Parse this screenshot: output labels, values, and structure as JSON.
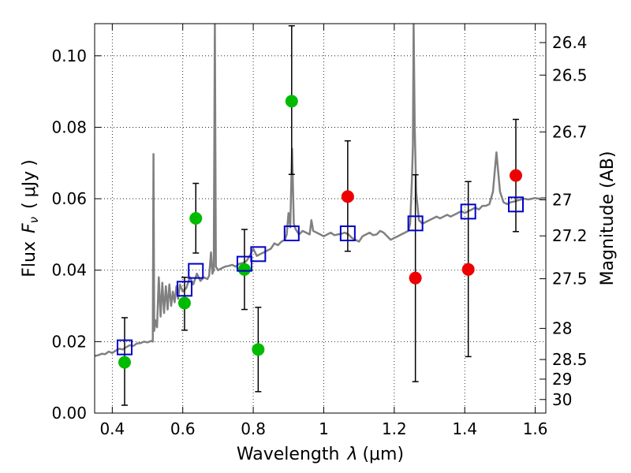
{
  "chart_data": {
    "type": "scatter",
    "xlabel_text": "Wavelength",
    "xlabel_symbol": "λ",
    "xlabel_unit": "(μm)",
    "ylabel_text": "Flux",
    "ylabel_symbol": "F",
    "ylabel_subscript": "ν",
    "ylabel_unit": "μJy",
    "y2label": "Magnitude (AB)",
    "xlim": [
      0.35,
      1.63
    ],
    "ylim": [
      0.0,
      0.109
    ],
    "grid": true,
    "xticks": [
      0.4,
      0.6,
      0.8,
      1.0,
      1.2,
      1.4,
      1.6
    ],
    "xtick_labels": [
      "0.4",
      "0.6",
      "0.8",
      "1",
      "1.2",
      "1.4",
      "1.6"
    ],
    "yticks": [
      0.0,
      0.02,
      0.04,
      0.06,
      0.08,
      0.1
    ],
    "ytick_labels": [
      "0.00",
      "0.02",
      "0.04",
      "0.06",
      "0.08",
      "0.10"
    ],
    "right_ticks": [
      {
        "label": "26.4",
        "flux": 0.1037
      },
      {
        "label": "26.5",
        "flux": 0.0946
      },
      {
        "label": "26.7",
        "flux": 0.0787
      },
      {
        "label": "27",
        "flux": 0.0597
      },
      {
        "label": "27.2",
        "flux": 0.0496
      },
      {
        "label": "27.5",
        "flux": 0.0376
      },
      {
        "label": "28",
        "flux": 0.0237
      },
      {
        "label": "28.5",
        "flux": 0.015
      },
      {
        "label": "29",
        "flux": 0.0095
      },
      {
        "label": "30",
        "flux": 0.0038
      }
    ],
    "colors": {
      "model": "#808080",
      "model_photometry": "#0000cc",
      "detections": "#00bb00",
      "upper_points": "#ee0000",
      "errorbar": "#000000"
    },
    "series": [
      {
        "kind": "green-points",
        "points": [
          {
            "x": 0.435,
            "y": 0.0142,
            "yerr_low": 0.0022,
            "yerr_high": 0.0267
          },
          {
            "x": 0.605,
            "y": 0.0308,
            "yerr_low": 0.0232,
            "yerr_high": 0.038
          },
          {
            "x": 0.637,
            "y": 0.0545,
            "yerr_low": 0.0448,
            "yerr_high": 0.0643
          },
          {
            "x": 0.775,
            "y": 0.0402,
            "yerr_low": 0.029,
            "yerr_high": 0.0514
          },
          {
            "x": 0.814,
            "y": 0.0178,
            "yerr_low": 0.006,
            "yerr_high": 0.0296
          },
          {
            "x": 0.909,
            "y": 0.0873,
            "yerr_low": 0.0668,
            "yerr_high": 0.1084
          }
        ]
      },
      {
        "kind": "red-points",
        "points": [
          {
            "x": 1.068,
            "y": 0.0606,
            "yerr_low": 0.0453,
            "yerr_high": 0.0762
          },
          {
            "x": 1.26,
            "y": 0.0378,
            "yerr_low": 0.0088,
            "yerr_high": 0.0667
          },
          {
            "x": 1.41,
            "y": 0.0402,
            "yerr_low": 0.0158,
            "yerr_high": 0.0648
          },
          {
            "x": 1.545,
            "y": 0.0665,
            "yerr_low": 0.0508,
            "yerr_high": 0.0822
          }
        ]
      },
      {
        "kind": "model-photometry",
        "points": [
          {
            "x": 0.435,
            "y": 0.0184
          },
          {
            "x": 0.605,
            "y": 0.0348
          },
          {
            "x": 0.637,
            "y": 0.0398
          },
          {
            "x": 0.775,
            "y": 0.0418
          },
          {
            "x": 0.814,
            "y": 0.0445
          },
          {
            "x": 0.909,
            "y": 0.0503
          },
          {
            "x": 1.068,
            "y": 0.0503
          },
          {
            "x": 1.26,
            "y": 0.0531
          },
          {
            "x": 1.41,
            "y": 0.0564
          },
          {
            "x": 1.545,
            "y": 0.0584
          }
        ]
      },
      {
        "kind": "model-spectrum",
        "points": [
          [
            0.35,
            0.016
          ],
          [
            0.36,
            0.0162
          ],
          [
            0.37,
            0.0166
          ],
          [
            0.38,
            0.0165
          ],
          [
            0.39,
            0.0172
          ],
          [
            0.4,
            0.0168
          ],
          [
            0.41,
            0.0175
          ],
          [
            0.42,
            0.018
          ],
          [
            0.43,
            0.0178
          ],
          [
            0.44,
            0.0185
          ],
          [
            0.45,
            0.019
          ],
          [
            0.46,
            0.0188
          ],
          [
            0.47,
            0.0195
          ],
          [
            0.48,
            0.0196
          ],
          [
            0.49,
            0.02
          ],
          [
            0.5,
            0.0198
          ],
          [
            0.51,
            0.0202
          ],
          [
            0.515,
            0.02
          ],
          [
            0.517,
            0.0725
          ],
          [
            0.519,
            0.023
          ],
          [
            0.522,
            0.026
          ],
          [
            0.527,
            0.024
          ],
          [
            0.532,
            0.038
          ],
          [
            0.537,
            0.027
          ],
          [
            0.542,
            0.0365
          ],
          [
            0.547,
            0.028
          ],
          [
            0.552,
            0.0355
          ],
          [
            0.557,
            0.029
          ],
          [
            0.562,
            0.036
          ],
          [
            0.567,
            0.03
          ],
          [
            0.572,
            0.034
          ],
          [
            0.577,
            0.031
          ],
          [
            0.582,
            0.0355
          ],
          [
            0.587,
            0.032
          ],
          [
            0.592,
            0.036
          ],
          [
            0.6,
            0.034
          ],
          [
            0.61,
            0.035
          ],
          [
            0.62,
            0.038
          ],
          [
            0.63,
            0.036
          ],
          [
            0.64,
            0.039
          ],
          [
            0.65,
            0.037
          ],
          [
            0.66,
            0.038
          ],
          [
            0.67,
            0.0375
          ],
          [
            0.675,
            0.0385
          ],
          [
            0.68,
            0.045
          ],
          [
            0.684,
            0.039
          ],
          [
            0.688,
            0.04
          ],
          [
            0.691,
            0.109
          ],
          [
            0.694,
            0.041
          ],
          [
            0.7,
            0.04
          ],
          [
            0.71,
            0.0405
          ],
          [
            0.72,
            0.041
          ],
          [
            0.73,
            0.0412
          ],
          [
            0.74,
            0.0415
          ],
          [
            0.75,
            0.041
          ],
          [
            0.76,
            0.0418
          ],
          [
            0.77,
            0.042
          ],
          [
            0.78,
            0.0425
          ],
          [
            0.79,
            0.044
          ],
          [
            0.8,
            0.046
          ],
          [
            0.81,
            0.044
          ],
          [
            0.82,
            0.0445
          ],
          [
            0.83,
            0.045
          ],
          [
            0.84,
            0.0455
          ],
          [
            0.85,
            0.046
          ],
          [
            0.86,
            0.0475
          ],
          [
            0.87,
            0.047
          ],
          [
            0.88,
            0.048
          ],
          [
            0.89,
            0.0485
          ],
          [
            0.895,
            0.05
          ],
          [
            0.9,
            0.056
          ],
          [
            0.905,
            0.052
          ],
          [
            0.91,
            0.074
          ],
          [
            0.915,
            0.053
          ],
          [
            0.92,
            0.0515
          ],
          [
            0.93,
            0.05
          ],
          [
            0.94,
            0.051
          ],
          [
            0.95,
            0.0505
          ],
          [
            0.96,
            0.05
          ],
          [
            0.965,
            0.054
          ],
          [
            0.97,
            0.051
          ],
          [
            0.98,
            0.0505
          ],
          [
            0.99,
            0.05
          ],
          [
            1.0,
            0.0495
          ],
          [
            1.01,
            0.05
          ],
          [
            1.02,
            0.0505
          ],
          [
            1.03,
            0.0498
          ],
          [
            1.04,
            0.05
          ],
          [
            1.05,
            0.0502
          ],
          [
            1.06,
            0.0505
          ],
          [
            1.07,
            0.05
          ],
          [
            1.08,
            0.049
          ],
          [
            1.09,
            0.0485
          ],
          [
            1.1,
            0.048
          ],
          [
            1.11,
            0.0495
          ],
          [
            1.12,
            0.05
          ],
          [
            1.13,
            0.0505
          ],
          [
            1.14,
            0.0498
          ],
          [
            1.15,
            0.05
          ],
          [
            1.16,
            0.051
          ],
          [
            1.17,
            0.0505
          ],
          [
            1.18,
            0.0495
          ],
          [
            1.19,
            0.0485
          ],
          [
            1.2,
            0.049
          ],
          [
            1.21,
            0.0495
          ],
          [
            1.22,
            0.05
          ],
          [
            1.23,
            0.0505
          ],
          [
            1.24,
            0.051
          ],
          [
            1.245,
            0.053
          ],
          [
            1.25,
            0.065
          ],
          [
            1.253,
            0.075
          ],
          [
            1.255,
            0.109
          ],
          [
            1.258,
            0.08
          ],
          [
            1.262,
            0.062
          ],
          [
            1.27,
            0.054
          ],
          [
            1.28,
            0.053
          ],
          [
            1.29,
            0.0535
          ],
          [
            1.3,
            0.054
          ],
          [
            1.31,
            0.0545
          ],
          [
            1.32,
            0.055
          ],
          [
            1.33,
            0.0545
          ],
          [
            1.34,
            0.055
          ],
          [
            1.35,
            0.0555
          ],
          [
            1.36,
            0.055
          ],
          [
            1.37,
            0.0555
          ],
          [
            1.38,
            0.056
          ],
          [
            1.39,
            0.0565
          ],
          [
            1.4,
            0.056
          ],
          [
            1.41,
            0.0565
          ],
          [
            1.42,
            0.057
          ],
          [
            1.43,
            0.0575
          ],
          [
            1.44,
            0.057
          ],
          [
            1.45,
            0.058
          ],
          [
            1.46,
            0.058
          ],
          [
            1.47,
            0.0585
          ],
          [
            1.48,
            0.062
          ],
          [
            1.49,
            0.073
          ],
          [
            1.5,
            0.062
          ],
          [
            1.51,
            0.059
          ],
          [
            1.52,
            0.0585
          ],
          [
            1.53,
            0.059
          ],
          [
            1.54,
            0.0592
          ],
          [
            1.55,
            0.0595
          ],
          [
            1.56,
            0.0598
          ],
          [
            1.57,
            0.06
          ],
          [
            1.58,
            0.0598
          ],
          [
            1.59,
            0.06
          ],
          [
            1.6,
            0.0602
          ],
          [
            1.61,
            0.06
          ],
          [
            1.62,
            0.0602
          ],
          [
            1.63,
            0.0602
          ]
        ]
      }
    ]
  }
}
